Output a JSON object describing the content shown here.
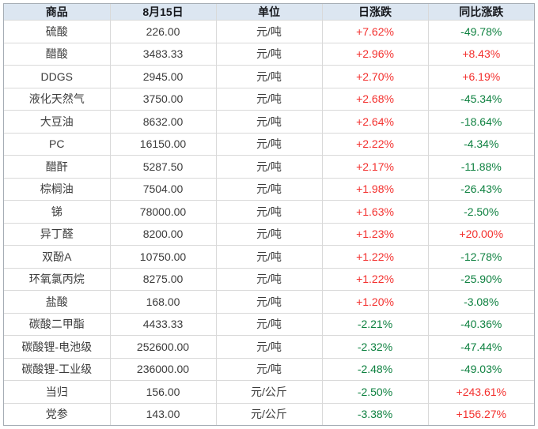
{
  "colors": {
    "positive_change": "#f3302e",
    "negative_change": "#0e8140",
    "header_bg": "#dce6f1",
    "header_text": "#15171c",
    "body_text": "#3c3c3c",
    "grid_line": "#d9d9d9",
    "outer_border": "#a6adb5"
  },
  "chart_data": {
    "type": "table",
    "headers": [
      "商品",
      "8月15日",
      "单位",
      "日涨跌",
      "同比涨跌"
    ],
    "rows": [
      {
        "name": "硫酸",
        "price": "226.00",
        "unit": "元/吨",
        "day_change": "+7.62%",
        "yoy_change": "-49.78%"
      },
      {
        "name": "醋酸",
        "price": "3483.33",
        "unit": "元/吨",
        "day_change": "+2.96%",
        "yoy_change": "+8.43%"
      },
      {
        "name": "DDGS",
        "price": "2945.00",
        "unit": "元/吨",
        "day_change": "+2.70%",
        "yoy_change": "+6.19%"
      },
      {
        "name": "液化天然气",
        "price": "3750.00",
        "unit": "元/吨",
        "day_change": "+2.68%",
        "yoy_change": "-45.34%"
      },
      {
        "name": "大豆油",
        "price": "8632.00",
        "unit": "元/吨",
        "day_change": "+2.64%",
        "yoy_change": "-18.64%"
      },
      {
        "name": "PC",
        "price": "16150.00",
        "unit": "元/吨",
        "day_change": "+2.22%",
        "yoy_change": "-4.34%"
      },
      {
        "name": "醋酐",
        "price": "5287.50",
        "unit": "元/吨",
        "day_change": "+2.17%",
        "yoy_change": "-11.88%"
      },
      {
        "name": "棕榈油",
        "price": "7504.00",
        "unit": "元/吨",
        "day_change": "+1.98%",
        "yoy_change": "-26.43%"
      },
      {
        "name": "锑",
        "price": "78000.00",
        "unit": "元/吨",
        "day_change": "+1.63%",
        "yoy_change": "-2.50%"
      },
      {
        "name": "异丁醛",
        "price": "8200.00",
        "unit": "元/吨",
        "day_change": "+1.23%",
        "yoy_change": "+20.00%"
      },
      {
        "name": "双酚A",
        "price": "10750.00",
        "unit": "元/吨",
        "day_change": "+1.22%",
        "yoy_change": "-12.78%"
      },
      {
        "name": "环氧氯丙烷",
        "price": "8275.00",
        "unit": "元/吨",
        "day_change": "+1.22%",
        "yoy_change": "-25.90%"
      },
      {
        "name": "盐酸",
        "price": "168.00",
        "unit": "元/吨",
        "day_change": "+1.20%",
        "yoy_change": "-3.08%"
      },
      {
        "name": "碳酸二甲酯",
        "price": "4433.33",
        "unit": "元/吨",
        "day_change": "-2.21%",
        "yoy_change": "-40.36%"
      },
      {
        "name": "碳酸锂-电池级",
        "price": "252600.00",
        "unit": "元/吨",
        "day_change": "-2.32%",
        "yoy_change": "-47.44%"
      },
      {
        "name": "碳酸锂-工业级",
        "price": "236000.00",
        "unit": "元/吨",
        "day_change": "-2.48%",
        "yoy_change": "-49.03%"
      },
      {
        "name": "当归",
        "price": "156.00",
        "unit": "元/公斤",
        "day_change": "-2.50%",
        "yoy_change": "+243.61%"
      },
      {
        "name": "党参",
        "price": "143.00",
        "unit": "元/公斤",
        "day_change": "-3.38%",
        "yoy_change": "+156.27%"
      }
    ]
  }
}
